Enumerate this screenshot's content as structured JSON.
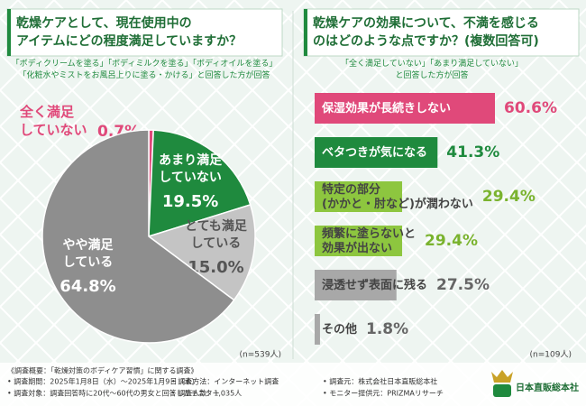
{
  "chart_data": [
    {
      "type": "pie",
      "title": "乾燥ケアとして、現在使用中の\nアイテムにどの程度満足していますか？",
      "subtitle": "「ボディクリームを塗る」「ボディミルクを塗る」「ボディオイルを塗る」\n「化粧水やミストをお風呂上りに塗る・かける」と回答した方が回答",
      "categories": [
        "全く満足\nしていない",
        "あまり満足\nしていない",
        "とても満足\nしている",
        "やや満足\nしている"
      ],
      "values": [
        0.7,
        19.5,
        15,
        64.8
      ],
      "value_labels": [
        "0.7%",
        "19.5%",
        "15.0%",
        "64.8%"
      ],
      "colors": [
        "#e0497a",
        "#1f8a3e",
        "#c4c4c4",
        "#8e8e8e"
      ],
      "label_colors": [
        "#e0497a",
        "#ffffff",
        "#555555",
        "#ffffff"
      ],
      "note": "(n=539人)"
    },
    {
      "type": "hbar",
      "title": "乾燥ケアの効果について、不満を感じる\nのはどのような点ですか？(複数回答可)",
      "subtitle": "「全く満足していない」「あまり満足していない」\nと回答した方が回答",
      "categories": [
        "保湿効果が長続きしない",
        "ベタつきが気になる",
        "特定の部分\n(かかと・肘など)が潤わない",
        "頻繁に塗らないと\n効果が出ない",
        "浸透せず表面に残る",
        "その他"
      ],
      "values": [
        60.6,
        41.3,
        29.4,
        29.4,
        27.5,
        1.8
      ],
      "value_labels": [
        "60.6%",
        "41.3%",
        "29.4%",
        "29.4%",
        "27.5%",
        "1.8%"
      ],
      "colors": [
        "#e0497a",
        "#1f8a3e",
        "#8dc63f",
        "#8dc63f",
        "#a8a8a8",
        "#a8a8a8"
      ],
      "value_label_colors": [
        "#e0497a",
        "#1f8a3e",
        "#7ab32e",
        "#7ab32e",
        "#666666",
        "#666666"
      ],
      "note": "(n=109人)"
    }
  ],
  "footer": {
    "heading": "《調査概要：「乾燥対策のボディケア習慣」に関する調査》",
    "items": [
      "• 調査期間：2025年1月8日（水）～2025年1月9日（木）",
      "• 調査方法：インターネット調査",
      "• 調査元：株式会社日本直販総本社",
      "• 調査対象：調査回答時に20代～60代の男女と回答したモニター",
      "• 調査人数：1,035人",
      "• モニター提供元：PRIZMAリサーチ"
    ],
    "logo": "日本直販総本社"
  }
}
